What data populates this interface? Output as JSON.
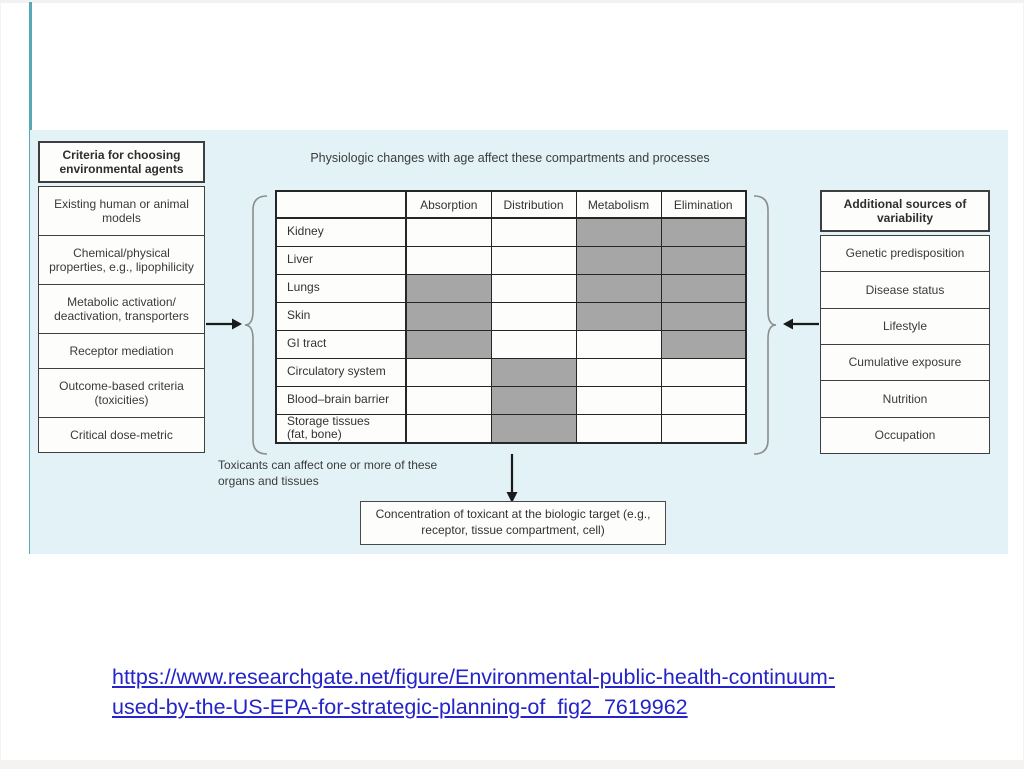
{
  "figure": {
    "panel_bg": "#e2f2f7",
    "top_caption": "Physiologic changes with age affect these compartments and processes",
    "left_panel": {
      "header": "Criteria for choosing environmental agents",
      "items": [
        "Existing human or animal models",
        "Chemical/physical properties, e.g., lipophilicity",
        "Metabolic activation/ deactivation, transporters",
        "Receptor mediation",
        "Outcome-based criteria (toxicities)",
        "Critical dose-metric"
      ]
    },
    "right_panel": {
      "header": "Additional sources of variability",
      "items": [
        "Genetic predisposition",
        "Disease status",
        "Lifestyle",
        "Cumulative exposure",
        "Nutrition",
        "Occupation"
      ]
    },
    "matrix": {
      "columns": [
        "Absorption",
        "Distribution",
        "Metabolism",
        "Elimination"
      ],
      "shaded_color": "#a6a6a6",
      "rows": [
        {
          "label": "Kidney",
          "shaded": [
            0,
            0,
            1,
            1
          ]
        },
        {
          "label": "Liver",
          "shaded": [
            0,
            0,
            1,
            1
          ]
        },
        {
          "label": "Lungs",
          "shaded": [
            1,
            0,
            1,
            1
          ]
        },
        {
          "label": "Skin",
          "shaded": [
            1,
            0,
            1,
            1
          ]
        },
        {
          "label": "GI tract",
          "shaded": [
            1,
            0,
            0,
            1
          ]
        },
        {
          "label": "Circulatory system",
          "shaded": [
            0,
            1,
            0,
            0
          ]
        },
        {
          "label": "Blood–brain barrier",
          "shaded": [
            0,
            1,
            0,
            0
          ]
        },
        {
          "label": "Storage tissues",
          "label2": "(fat, bone)",
          "shaded": [
            0,
            1,
            0,
            0
          ]
        }
      ]
    },
    "bottom_caption": "Toxicants can affect one or more of these organs and tissues",
    "target_box": "Concentration of toxicant at the biologic target (e.g., receptor, tissue compartment, cell)"
  },
  "link": {
    "line1": "https://www.researchgate.net/figure/Environmental-public-health-continuum-",
    "line2": "used-by-the-US-EPA-for-strategic-planning-of_fig2_7619962",
    "color": "#2424c8"
  }
}
